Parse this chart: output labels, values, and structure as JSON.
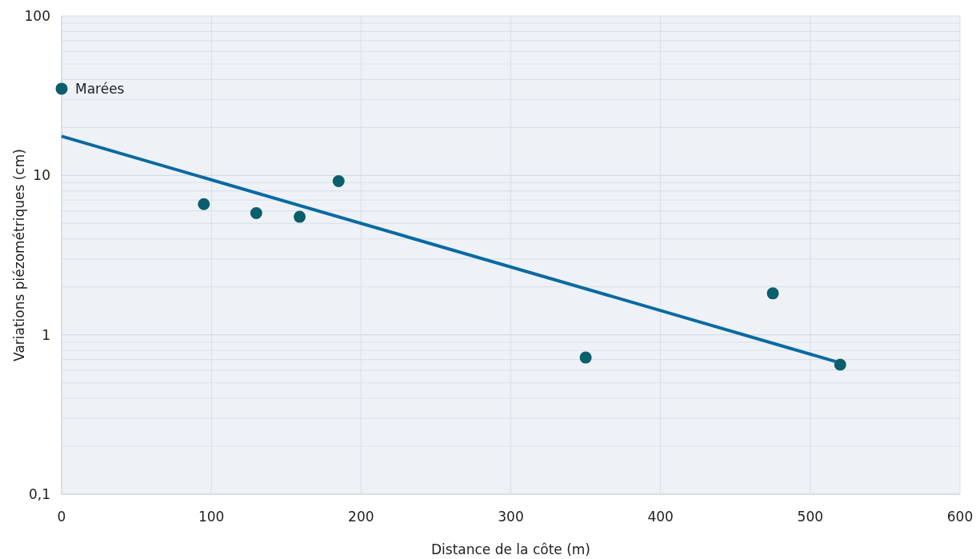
{
  "chart_data": {
    "type": "scatter",
    "xlabel": "Distance de la côte (m)",
    "ylabel": "Variations piézométriques (cm)",
    "log": "y",
    "grid": true,
    "marker": "circle",
    "xlim": [
      0,
      600
    ],
    "xticks": [
      0,
      100,
      200,
      300,
      400,
      500,
      600
    ],
    "ylim": [
      0.1,
      100
    ],
    "yticks": [
      {
        "value": 0.1,
        "label": "0,1"
      },
      {
        "value": 0.2,
        "label": null
      },
      {
        "value": 0.3,
        "label": null
      },
      {
        "value": 0.4,
        "label": null
      },
      {
        "value": 0.5,
        "label": null
      },
      {
        "value": 0.6,
        "label": null
      },
      {
        "value": 0.7,
        "label": null
      },
      {
        "value": 0.8,
        "label": null
      },
      {
        "value": 0.9,
        "label": null
      },
      1,
      {
        "value": 2,
        "label": null
      },
      {
        "value": 3,
        "label": null
      },
      {
        "value": 4,
        "label": null
      },
      {
        "value": 5,
        "label": null
      },
      {
        "value": 6,
        "label": null
      },
      {
        "value": 7,
        "label": null
      },
      {
        "value": 8,
        "label": null
      },
      {
        "value": 9,
        "label": null
      },
      10,
      {
        "value": 20,
        "label": null
      },
      {
        "value": 30,
        "label": null
      },
      {
        "value": 40,
        "label": null
      },
      {
        "value": 50,
        "label": null
      },
      {
        "value": 60,
        "label": null
      },
      {
        "value": 70,
        "label": null
      },
      {
        "value": 80,
        "label": null
      },
      {
        "value": 90,
        "label": null
      },
      100
    ],
    "series": [
      {
        "name": "Marées",
        "color": "#0b5f6d",
        "x": [
          0
        ],
        "values": [
          35
        ]
      },
      {
        "color": "#0b5f6d",
        "x": [
          95,
          130,
          159,
          185,
          350,
          475,
          520
        ],
        "values": [
          6.6,
          5.8,
          5.5,
          9.2,
          0.72,
          1.82,
          0.65
        ]
      },
      {
        "type": "line",
        "marker": "none",
        "color": "#0a6aa1",
        "x": [
          0,
          517
        ],
        "values": [
          17.6,
          0.68
        ]
      }
    ]
  }
}
